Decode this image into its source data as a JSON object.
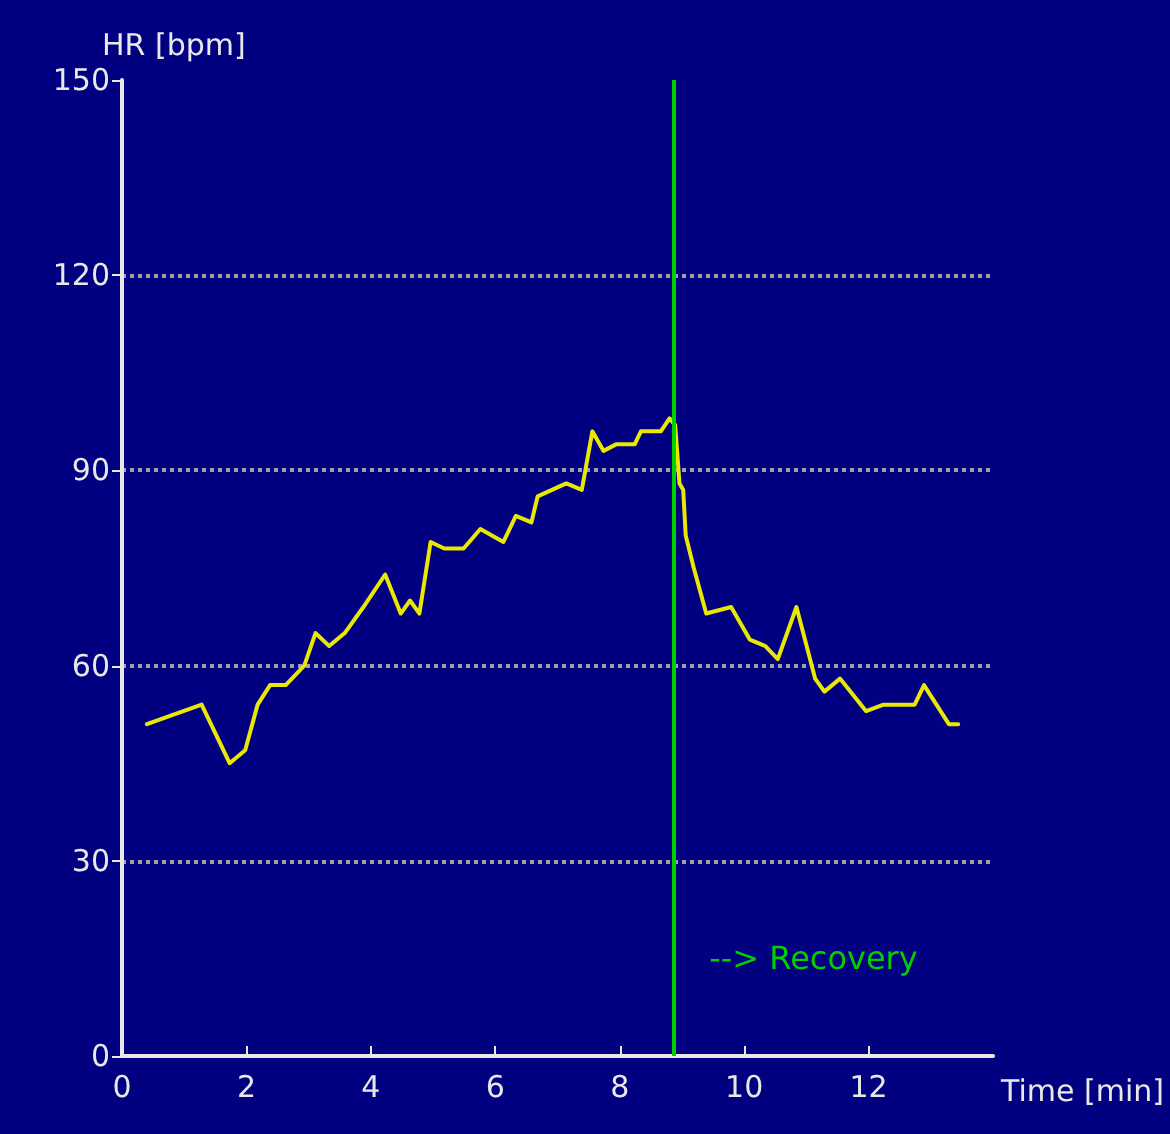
{
  "chart_data": {
    "type": "line",
    "xlabel": "Time [min]",
    "ylabel": "HR [bpm]",
    "x": [
      0.4,
      1.28,
      1.73,
      1.98,
      2.18,
      2.38,
      2.63,
      2.93,
      3.11,
      3.33,
      3.58,
      3.88,
      4.23,
      4.48,
      4.63,
      4.78,
      4.96,
      5.18,
      5.49,
      5.76,
      6.13,
      6.33,
      6.58,
      6.68,
      7.14,
      7.39,
      7.56,
      7.74,
      7.94,
      8.24,
      8.34,
      8.66,
      8.8,
      8.89,
      8.96,
      9.02,
      9.06,
      9.19,
      9.39,
      9.79,
      10.09,
      10.34,
      10.54,
      10.84,
      11.14,
      11.29,
      11.54,
      11.96,
      12.24,
      12.44,
      12.74,
      12.89,
      13.29,
      13.44
    ],
    "series": [
      {
        "color": "#e8e800",
        "values": [
          51,
          54,
          45,
          47,
          54,
          57,
          57,
          60,
          65,
          63,
          65,
          69,
          74,
          68,
          70,
          68,
          79,
          78,
          78,
          81,
          79,
          83,
          82,
          86,
          88,
          87,
          96,
          93,
          94,
          94,
          96,
          96,
          98,
          97,
          88,
          87,
          80,
          75,
          68,
          69,
          64,
          63,
          61,
          69,
          58,
          56,
          58,
          53,
          54,
          54,
          54,
          57,
          51,
          51
        ]
      }
    ],
    "xlim": [
      0,
      14
    ],
    "xticks": [
      0,
      2,
      4,
      6,
      8,
      10,
      12
    ],
    "ylim": [
      0,
      150
    ],
    "yticks": [
      0,
      30,
      60,
      90,
      120,
      150
    ],
    "grid": "y",
    "marker": "none",
    "line_style": "solid",
    "ref_lines": [
      {
        "axis": "x",
        "value": 8.86,
        "label": "--> Recovery",
        "color": "#00d000"
      }
    ]
  }
}
